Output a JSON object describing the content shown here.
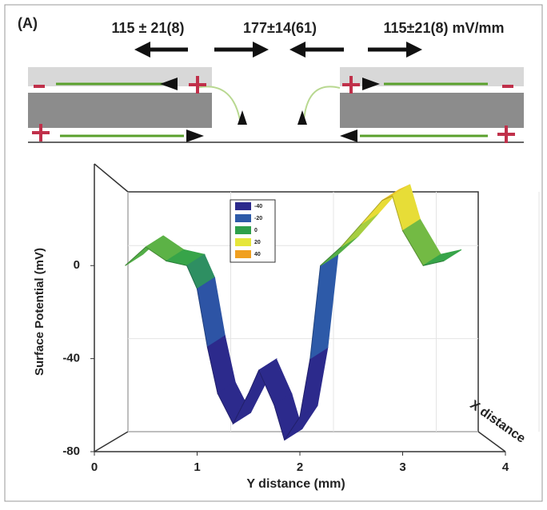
{
  "panel_label": "(A)",
  "schematic": {
    "labels": [
      "115 ± 21(8)",
      "177±14(61)",
      "115±21(8) mV/mm"
    ]
  },
  "chart_data": {
    "type": "surface",
    "ylabel": "Surface Potential (mV)",
    "xlabel": "Y distance (mm)",
    "zlabel": "X distance",
    "x": [
      0.3,
      0.5,
      0.7,
      0.9,
      1.0,
      1.1,
      1.2,
      1.35,
      1.5,
      1.6,
      1.75,
      1.85,
      2.0,
      2.1,
      2.2,
      2.4,
      2.6,
      2.8,
      2.9,
      3.0,
      3.2,
      3.4
    ],
    "values": [
      0,
      8,
      2,
      0,
      -10,
      -35,
      -55,
      -68,
      -55,
      -45,
      -60,
      -75,
      -65,
      -40,
      0,
      8,
      18,
      28,
      30,
      15,
      0,
      2
    ],
    "xlim": [
      0,
      4
    ],
    "xticks": [
      0,
      1,
      2,
      3,
      4
    ],
    "ylim": [
      -80,
      30
    ],
    "yticks": [
      0,
      -40,
      -80
    ],
    "legend": [
      {
        "value": -40,
        "color": "#2c2a8c"
      },
      {
        "value": -20,
        "color": "#2d5aa8"
      },
      {
        "value": 0,
        "color": "#2ea04a"
      },
      {
        "value": 20,
        "color": "#e6e63a"
      },
      {
        "value": 40,
        "color": "#f0a020"
      }
    ]
  }
}
